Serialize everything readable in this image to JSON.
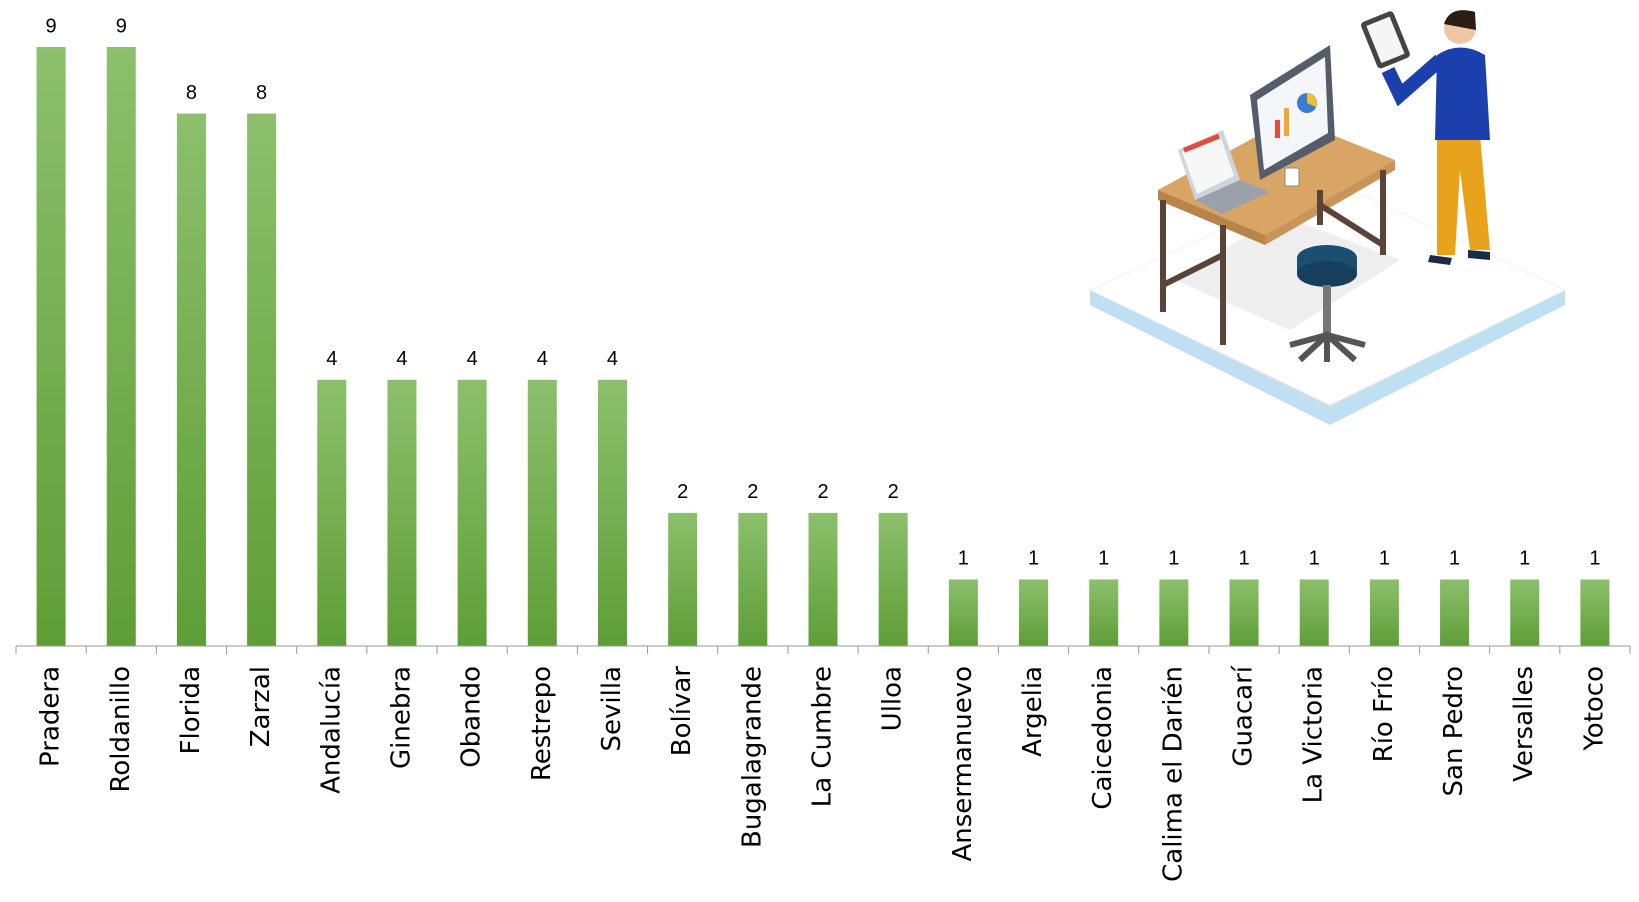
{
  "chart_data": {
    "type": "bar",
    "categories": [
      "Pradera",
      "Roldanillo",
      "Florida",
      "Zarzal",
      "Andalucía",
      "Ginebra",
      "Obando",
      "Restrepo",
      "Sevilla",
      "Bolívar",
      "Bugalagrande",
      "La Cumbre",
      "Ulloa",
      "Ansermanuevo",
      "Argelia",
      "Caicedonia",
      "Calima el Darién",
      "Guacarí",
      "La Victoria",
      "Río Frío",
      "San Pedro",
      "Versalles",
      "Yotoco"
    ],
    "values": [
      9,
      9,
      8,
      8,
      4,
      4,
      4,
      4,
      4,
      2,
      2,
      2,
      2,
      1,
      1,
      1,
      1,
      1,
      1,
      1,
      1,
      1,
      1
    ],
    "color": "#6aab45"
  }
}
